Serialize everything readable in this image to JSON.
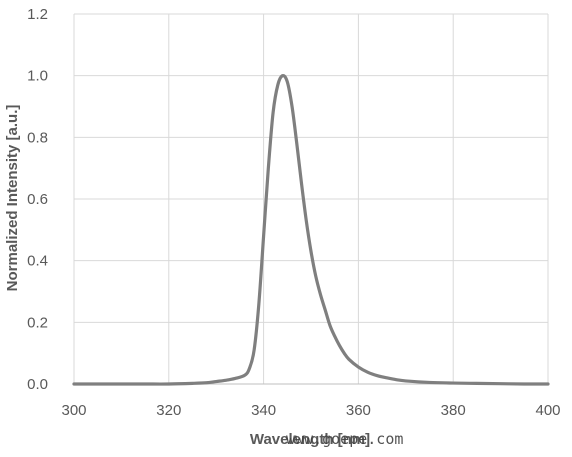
{
  "chart_data": {
    "type": "line",
    "title": "",
    "xlabel": "Wavelength [nm]",
    "ylabel": "Normalized Intensity [a.u.]",
    "xlim": [
      300,
      400
    ],
    "ylim": [
      0,
      1.2
    ],
    "x_ticks": [
      "300",
      "320",
      "340",
      "360",
      "380",
      "400"
    ],
    "y_ticks": [
      "0.0",
      "0.2",
      "0.4",
      "0.6",
      "0.8",
      "1.0",
      "1.2"
    ],
    "grid": true,
    "legend": "none",
    "line_color": "#7f7f7f",
    "series": [
      {
        "x": [
          300,
          305,
          310,
          315,
          320,
          325,
          328,
          330,
          332,
          334,
          336,
          337,
          338,
          339,
          340,
          341,
          342,
          343,
          344,
          345,
          346,
          347,
          348,
          349,
          350,
          351,
          352,
          353,
          354,
          355,
          356,
          357,
          358,
          360,
          362,
          364,
          366,
          368,
          370,
          375,
          380,
          385,
          390,
          395,
          400
        ],
        "y": [
          0.0,
          0.0,
          0.0,
          0.0,
          0.0,
          0.002,
          0.004,
          0.008,
          0.012,
          0.018,
          0.028,
          0.05,
          0.11,
          0.26,
          0.48,
          0.7,
          0.88,
          0.97,
          1.0,
          0.98,
          0.9,
          0.78,
          0.65,
          0.53,
          0.43,
          0.35,
          0.29,
          0.24,
          0.19,
          0.155,
          0.125,
          0.1,
          0.08,
          0.055,
          0.038,
          0.027,
          0.02,
          0.014,
          0.01,
          0.005,
          0.003,
          0.002,
          0.001,
          0.0,
          0.0
        ]
      }
    ]
  },
  "watermark": "www.goepe.com"
}
